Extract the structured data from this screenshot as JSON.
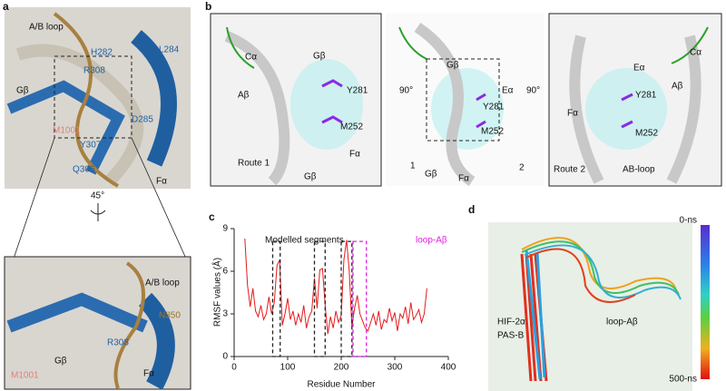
{
  "panel_a": {
    "label": "a",
    "top_labels": [
      "A/B loop",
      "H282",
      "L284",
      "R308",
      "Gβ",
      "D285",
      "M1001",
      "Y307",
      "Q306",
      "Fα"
    ],
    "rotation": "45°",
    "inset_labels": [
      "A/B loop",
      "N350",
      "R308",
      "Gβ",
      "M1001",
      "Fα"
    ]
  },
  "panel_b": {
    "label": "b",
    "left_labels": [
      "Cα",
      "Aβ",
      "Gβ",
      "Y281",
      "M252",
      "Route 1",
      "Gβ",
      "Fα"
    ],
    "middle_labels": [
      "90°",
      "90°",
      "Gβ",
      "Eα",
      "Y281",
      "M252",
      "1",
      "2",
      "Gβ",
      "Fα"
    ],
    "right_labels": [
      "Eα",
      "Cα",
      "Aβ",
      "Y281",
      "Fα",
      "M252",
      "Route 2",
      "AB-loop"
    ]
  },
  "chart_data": {
    "type": "line",
    "panel_label": "c",
    "xlabel": "Residue Number",
    "ylabel": "RMSF values (Å)",
    "xlim": [
      0,
      400
    ],
    "ylim": [
      0,
      9
    ],
    "xticks": [
      0,
      100,
      200,
      300,
      400
    ],
    "yticks": [
      0,
      3,
      6,
      9
    ],
    "x": [
      20,
      25,
      30,
      35,
      40,
      45,
      50,
      55,
      60,
      65,
      70,
      75,
      80,
      85,
      90,
      95,
      100,
      105,
      110,
      115,
      120,
      125,
      130,
      135,
      140,
      145,
      150,
      155,
      160,
      165,
      170,
      175,
      180,
      185,
      190,
      195,
      200,
      205,
      210,
      215,
      220,
      225,
      230,
      235,
      240,
      245,
      250,
      255,
      260,
      265,
      270,
      275,
      280,
      285,
      290,
      295,
      300,
      305,
      310,
      315,
      320,
      325,
      330,
      335,
      340,
      345,
      350,
      355,
      360
    ],
    "series": [
      {
        "color": "#e41a1c",
        "values": [
          8.3,
          5.0,
          3.5,
          4.8,
          3.2,
          2.8,
          3.6,
          2.6,
          3.0,
          4.2,
          3.0,
          3.8,
          6.4,
          6.8,
          2.2,
          3.0,
          4.1,
          2.6,
          3.2,
          2.2,
          3.0,
          2.4,
          3.6,
          2.0,
          2.8,
          3.2,
          5.5,
          3.4,
          6.1,
          6.2,
          3.6,
          1.6,
          2.8,
          2.0,
          3.2,
          2.4,
          2.9,
          6.8,
          8.2,
          6.0,
          2.1,
          3.4,
          4.3,
          3.0,
          2.5,
          2.0,
          1.8,
          2.4,
          3.0,
          2.2,
          3.2,
          1.9,
          2.6,
          2.4,
          3.4,
          2.5,
          3.1,
          1.8,
          3.0,
          2.7,
          3.5,
          2.3,
          3.8,
          2.6,
          2.9,
          3.3,
          2.4,
          3.0,
          4.8
        ]
      }
    ],
    "regions": [
      {
        "x": [
          72,
          86
        ],
        "y": [
          0,
          8.1
        ],
        "color": "#222222"
      },
      {
        "x": [
          150,
          170
        ],
        "y": [
          0,
          8.1
        ],
        "color": "#222222"
      },
      {
        "x": [
          200,
          220
        ],
        "y": [
          0,
          8.1
        ],
        "color": "#222222"
      },
      {
        "x": [
          222,
          247
        ],
        "y": [
          0,
          8.1
        ],
        "color": "#e020e0"
      }
    ],
    "annotations": [
      {
        "text": "Modelled segments",
        "color": "#111111"
      },
      {
        "text": "loop-Aβ",
        "color": "#e020e0"
      }
    ]
  },
  "panel_d": {
    "label": "d",
    "labels": [
      "HIF-2α",
      "PAS-B",
      "loop-Aβ"
    ],
    "colorbar_top": "0-ns",
    "colorbar_bottom": "500-ns"
  }
}
